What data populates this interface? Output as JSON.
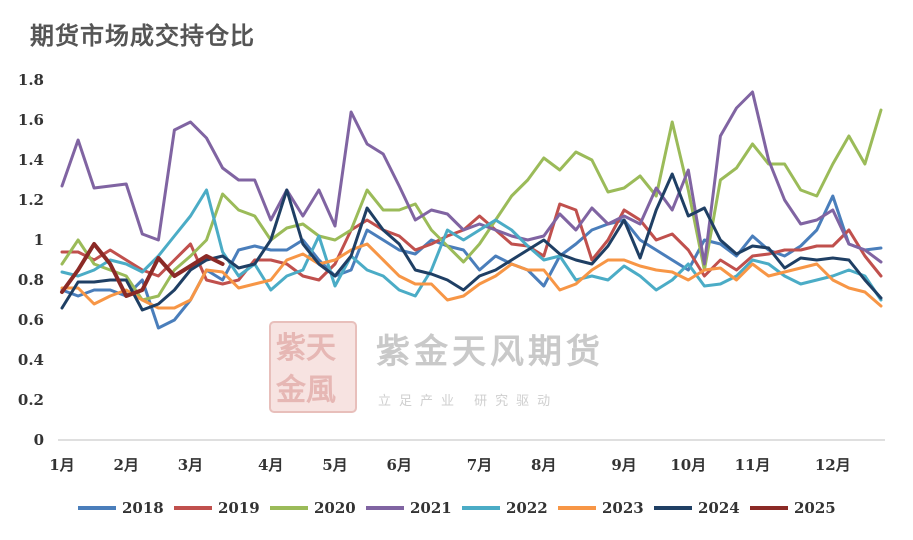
{
  "chart_data": {
    "type": "line",
    "title": "期货市场成交持仓比",
    "xlabel": "",
    "ylabel": "",
    "ylim": [
      0,
      1.8
    ],
    "yticks": [
      "0",
      "0.2",
      "0.4",
      "0.6",
      "0.8",
      "1",
      "1.2",
      "1.4",
      "1.6",
      "1.8"
    ],
    "months": [
      "1月",
      "2月",
      "3月",
      "4月",
      "5月",
      "6月",
      "7月",
      "8月",
      "9月",
      "10月",
      "11月",
      "12月"
    ],
    "month_positions": [
      1,
      5,
      9,
      14,
      18,
      22,
      27,
      31,
      36,
      40,
      44,
      49
    ],
    "x_range": [
      1,
      52
    ],
    "legend_position": "bottom",
    "series": [
      {
        "name": "2018",
        "color": "#4a7ebb",
        "values": [
          0.75,
          0.72,
          0.75,
          0.75,
          0.72,
          0.8,
          0.56,
          0.6,
          0.7,
          0.85,
          0.8,
          0.95,
          0.97,
          0.95,
          0.95,
          1.0,
          0.9,
          0.82,
          0.85,
          1.05,
          1.0,
          0.95,
          0.93,
          1.0,
          0.97,
          0.95,
          0.85,
          0.92,
          0.88,
          0.85,
          0.77,
          0.92,
          0.98,
          1.05,
          1.08,
          1.1,
          1.0,
          0.95,
          0.9,
          0.85,
          1.0,
          0.98,
          0.92,
          1.02,
          0.95,
          0.92,
          0.97,
          1.05,
          1.22,
          0.98,
          0.95,
          0.96
        ]
      },
      {
        "name": "2019",
        "color": "#c0504d",
        "values": [
          0.94,
          0.94,
          0.9,
          0.95,
          0.9,
          0.85,
          0.82,
          0.9,
          0.98,
          0.8,
          0.78,
          0.8,
          0.9,
          0.9,
          0.88,
          0.82,
          0.8,
          0.88,
          1.05,
          1.1,
          1.05,
          1.02,
          0.95,
          0.98,
          1.02,
          1.05,
          1.12,
          1.05,
          0.98,
          0.97,
          0.92,
          1.18,
          1.15,
          0.9,
          1.0,
          1.15,
          1.1,
          1.0,
          1.03,
          0.95,
          0.82,
          0.9,
          0.85,
          0.92,
          0.93,
          0.95,
          0.95,
          0.97,
          0.97,
          1.05,
          0.92,
          0.82
        ]
      },
      {
        "name": "2020",
        "color": "#9bbb59",
        "values": [
          0.88,
          1.0,
          0.88,
          0.85,
          0.82,
          0.7,
          0.72,
          0.85,
          0.92,
          1.0,
          1.23,
          1.15,
          1.12,
          1.0,
          1.06,
          1.08,
          1.02,
          1.0,
          1.05,
          1.25,
          1.15,
          1.15,
          1.18,
          1.05,
          0.97,
          0.89,
          0.98,
          1.1,
          1.22,
          1.3,
          1.41,
          1.35,
          1.44,
          1.4,
          1.24,
          1.26,
          1.32,
          1.22,
          1.59,
          1.25,
          0.85,
          1.3,
          1.36,
          1.48,
          1.38,
          1.38,
          1.25,
          1.22,
          1.38,
          1.52,
          1.38,
          1.65
        ]
      },
      {
        "name": "2021",
        "color": "#8064a2",
        "values": [
          1.27,
          1.5,
          1.26,
          1.27,
          1.28,
          1.03,
          1.0,
          1.55,
          1.59,
          1.51,
          1.36,
          1.3,
          1.3,
          1.1,
          1.25,
          1.12,
          1.25,
          1.07,
          1.64,
          1.48,
          1.43,
          1.27,
          1.1,
          1.15,
          1.13,
          1.05,
          1.08,
          1.05,
          1.02,
          1.0,
          1.02,
          1.13,
          1.05,
          1.16,
          1.08,
          1.12,
          1.08,
          1.26,
          1.15,
          1.35,
          0.88,
          1.52,
          1.66,
          1.74,
          1.4,
          1.2,
          1.08,
          1.1,
          1.15,
          0.98,
          0.95,
          0.89
        ]
      },
      {
        "name": "2022",
        "color": "#4bacc6",
        "values": [
          0.84,
          0.82,
          0.85,
          0.9,
          0.88,
          0.84,
          0.92,
          1.02,
          1.12,
          1.25,
          0.94,
          0.82,
          0.88,
          0.75,
          0.82,
          0.85,
          1.02,
          0.77,
          0.92,
          0.85,
          0.82,
          0.75,
          0.72,
          0.85,
          1.05,
          1.0,
          1.05,
          1.1,
          1.05,
          0.97,
          0.9,
          0.92,
          0.8,
          0.82,
          0.8,
          0.87,
          0.82,
          0.75,
          0.8,
          0.88,
          0.77,
          0.78,
          0.82,
          0.9,
          0.88,
          0.82,
          0.78,
          0.8,
          0.82,
          0.85,
          0.82,
          0.7
        ]
      },
      {
        "name": "2023",
        "color": "#f79646",
        "values": [
          0.76,
          0.76,
          0.68,
          0.72,
          0.75,
          0.7,
          0.66,
          0.66,
          0.7,
          0.85,
          0.84,
          0.76,
          0.78,
          0.8,
          0.9,
          0.93,
          0.88,
          0.9,
          0.95,
          0.98,
          0.9,
          0.82,
          0.78,
          0.78,
          0.7,
          0.72,
          0.78,
          0.82,
          0.88,
          0.85,
          0.85,
          0.75,
          0.78,
          0.85,
          0.9,
          0.9,
          0.87,
          0.85,
          0.84,
          0.8,
          0.85,
          0.86,
          0.8,
          0.88,
          0.82,
          0.84,
          0.86,
          0.88,
          0.8,
          0.76,
          0.74,
          0.67
        ]
      },
      {
        "name": "2024",
        "color": "#1f3f64",
        "values": [
          0.66,
          0.79,
          0.79,
          0.8,
          0.8,
          0.65,
          0.68,
          0.75,
          0.85,
          0.9,
          0.92,
          0.86,
          0.88,
          1.0,
          1.25,
          0.98,
          0.88,
          0.82,
          0.92,
          1.16,
          1.05,
          0.98,
          0.85,
          0.83,
          0.8,
          0.75,
          0.82,
          0.85,
          0.9,
          0.95,
          1.0,
          0.93,
          0.9,
          0.88,
          0.97,
          1.1,
          0.91,
          1.15,
          1.33,
          1.12,
          1.16,
          1.0,
          0.93,
          0.97,
          0.96,
          0.86,
          0.91,
          0.9,
          0.91,
          0.9,
          0.8,
          0.71
        ]
      },
      {
        "name": "2025",
        "color": "#8b2a26",
        "values": [
          0.74,
          0.85,
          0.98,
          0.88,
          0.72,
          0.75,
          0.91,
          0.82,
          0.87,
          0.92,
          0.88
        ]
      }
    ]
  }
}
